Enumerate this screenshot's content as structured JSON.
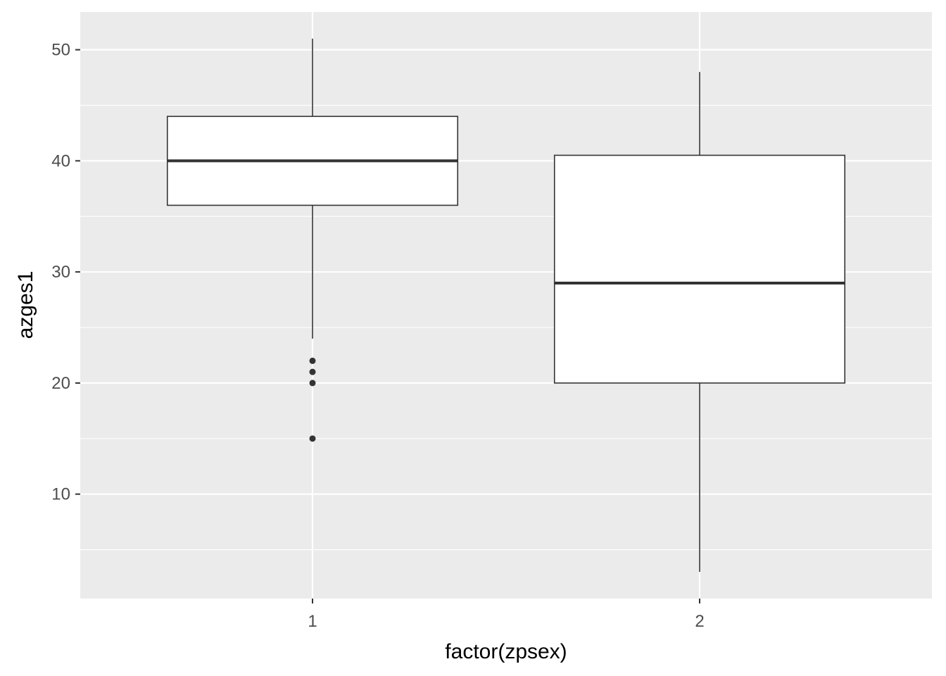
{
  "chart_data": {
    "type": "boxplot",
    "xlabel": "factor(zpsex)",
    "ylabel": "azges1",
    "categories": [
      "1",
      "2"
    ],
    "ylim": [
      0.6,
      53.4
    ],
    "yticks": [
      10,
      20,
      30,
      40,
      50
    ],
    "ytick_labels": [
      "10",
      "20",
      "30",
      "40",
      "50"
    ],
    "grid": true,
    "boxes": [
      {
        "category": "1",
        "whisker_low": 24,
        "q1": 36,
        "median": 40,
        "q3": 44,
        "whisker_high": 51,
        "outliers": [
          22,
          21,
          20,
          15
        ]
      },
      {
        "category": "2",
        "whisker_low": 3,
        "q1": 20,
        "median": 29,
        "q3": 40.5,
        "whisker_high": 48,
        "outliers": []
      }
    ],
    "colors": {
      "panel_background": "#ebebeb",
      "grid": "#ffffff",
      "box_fill": "#ffffff",
      "box_stroke": "#333333",
      "tick_text": "#4d4d4d",
      "title_text": "#000000"
    }
  }
}
